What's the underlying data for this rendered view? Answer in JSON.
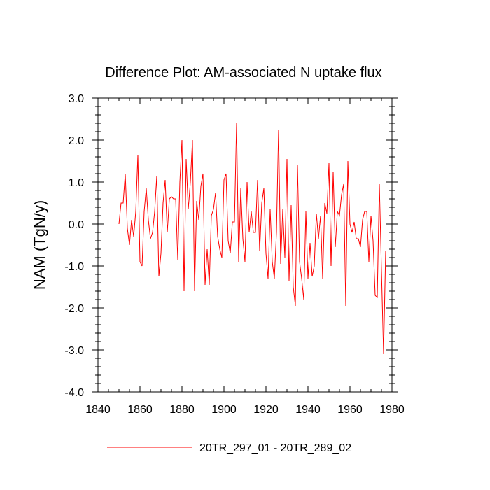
{
  "chart_data": {
    "type": "line",
    "title": "Difference Plot: AM-associated N uptake flux",
    "xlabel": "",
    "ylabel": "NAM  (TgN/y)",
    "xlim": [
      1840,
      1980
    ],
    "ylim": [
      -4.0,
      3.0
    ],
    "x_ticks": [
      1840,
      1860,
      1880,
      1900,
      1920,
      1940,
      1960,
      1980
    ],
    "x_tick_labels": [
      "1840",
      "1860",
      "1880",
      "1900",
      "1920",
      "1940",
      "1960",
      "1980"
    ],
    "y_ticks": [
      3.0,
      2.0,
      1.0,
      0.0,
      -1.0,
      -2.0,
      -3.0,
      -4.0
    ],
    "y_tick_labels": [
      "3.0",
      "2.0",
      "1.0",
      "0.0",
      "-1.0",
      "-2.0",
      "-3.0",
      "-4.0"
    ],
    "grid": false,
    "legend_position": "bottom-center",
    "series": [
      {
        "name": "20TR_297_01 - 20TR_289_02",
        "color": "#ff0000",
        "x_start": 1850,
        "x_step": 1,
        "values": [
          0.0,
          0.5,
          0.5,
          1.2,
          -0.1,
          -0.5,
          0.1,
          -0.3,
          0.3,
          1.65,
          -0.9,
          -1.0,
          0.3,
          0.85,
          0.1,
          -0.35,
          -0.2,
          0.3,
          1.15,
          -1.25,
          -0.7,
          0.5,
          1.05,
          -0.2,
          0.6,
          0.65,
          0.6,
          0.6,
          -0.85,
          1.0,
          2.0,
          -1.6,
          1.55,
          0.35,
          1.0,
          2.0,
          -1.6,
          0.55,
          0.1,
          0.9,
          1.2,
          -1.45,
          -0.6,
          -1.45,
          0.2,
          0.35,
          0.75,
          -0.3,
          -0.6,
          -0.8,
          1.05,
          1.2,
          -0.4,
          -0.7,
          0.05,
          0.05,
          2.4,
          -0.9,
          0.85,
          -0.35,
          -0.9,
          1.0,
          -0.2,
          0.3,
          -0.2,
          -0.2,
          1.05,
          -0.65,
          0.5,
          0.85,
          -0.7,
          -1.3,
          0.35,
          -0.9,
          -1.3,
          -0.2,
          2.25,
          -0.95,
          0.35,
          -0.8,
          1.55,
          -1.35,
          0.45,
          -1.5,
          -1.95,
          1.4,
          -0.9,
          -1.3,
          -1.8,
          0.3,
          -1.3,
          -0.45,
          -1.25,
          -1.0,
          0.25,
          -0.35,
          0.2,
          -1.3,
          0.5,
          0.25,
          1.45,
          -1.0,
          1.25,
          -0.55,
          0.3,
          0.2,
          0.7,
          0.95,
          -1.95,
          1.5,
          0.0,
          -0.2,
          0.05,
          -0.35,
          -0.35,
          -0.55,
          0.1,
          0.3,
          0.3,
          -0.9,
          0.2,
          -0.4,
          -1.7,
          -1.75,
          0.95,
          -1.1,
          -3.1,
          -0.65
        ]
      }
    ]
  }
}
